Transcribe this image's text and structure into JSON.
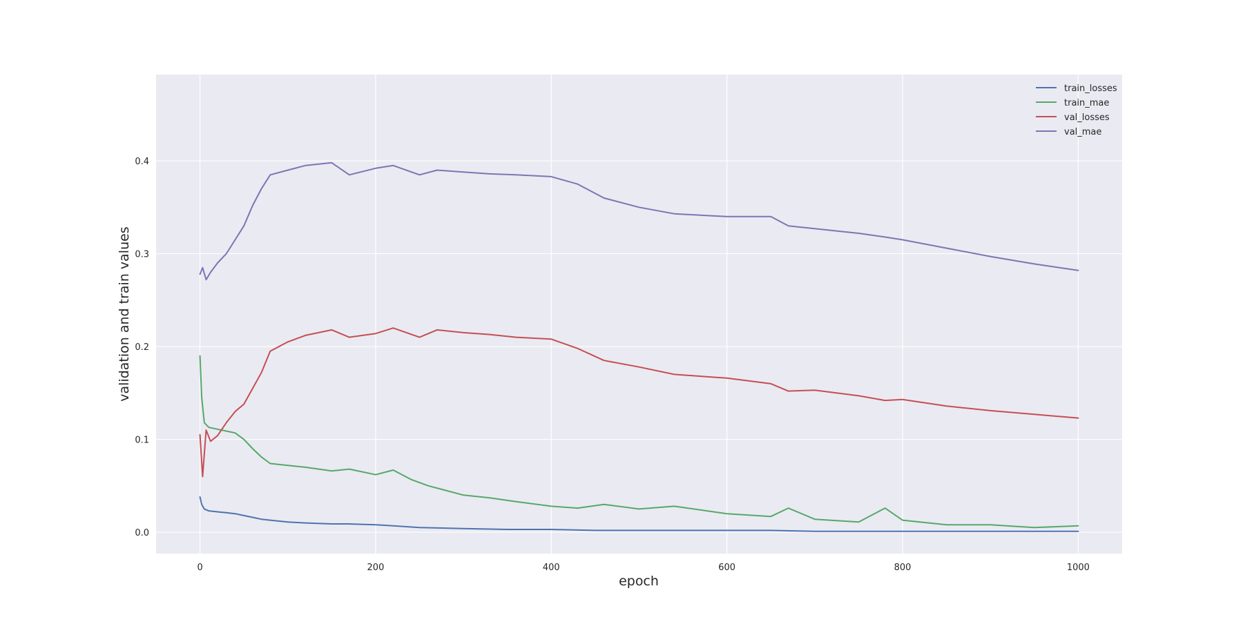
{
  "chart_data": {
    "type": "line",
    "title": "",
    "xlabel": "epoch",
    "ylabel": "validation and train values",
    "xlim": [
      -50,
      1050
    ],
    "ylim": [
      -0.023,
      0.493
    ],
    "xticks": [
      0,
      200,
      400,
      600,
      800,
      1000
    ],
    "yticks": [
      0.0,
      0.1,
      0.2,
      0.3,
      0.4
    ],
    "xtick_labels": [
      "0",
      "200",
      "400",
      "600",
      "800",
      "1000"
    ],
    "ytick_labels": [
      "0.0",
      "0.1",
      "0.2",
      "0.3",
      "0.4"
    ],
    "grid": true,
    "legend_position": "top-right",
    "background_color": "#EAEAF2",
    "grid_color": "#FFFFFF",
    "series": [
      {
        "name": "train_losses",
        "color": "#4C72B0",
        "x": [
          0,
          2,
          5,
          10,
          20,
          30,
          40,
          50,
          60,
          70,
          80,
          100,
          120,
          150,
          170,
          200,
          220,
          250,
          300,
          350,
          400,
          450,
          500,
          550,
          600,
          650,
          700,
          750,
          800,
          850,
          900,
          950,
          1000
        ],
        "values": [
          0.038,
          0.03,
          0.025,
          0.023,
          0.022,
          0.021,
          0.02,
          0.018,
          0.016,
          0.014,
          0.013,
          0.011,
          0.01,
          0.009,
          0.009,
          0.008,
          0.007,
          0.005,
          0.004,
          0.003,
          0.003,
          0.002,
          0.002,
          0.002,
          0.002,
          0.002,
          0.001,
          0.001,
          0.001,
          0.001,
          0.001,
          0.001,
          0.001
        ]
      },
      {
        "name": "train_mae",
        "color": "#55A868",
        "x": [
          0,
          2,
          5,
          10,
          20,
          30,
          40,
          50,
          60,
          70,
          80,
          100,
          120,
          150,
          170,
          200,
          220,
          240,
          260,
          280,
          300,
          330,
          360,
          400,
          430,
          460,
          500,
          540,
          600,
          650,
          670,
          700,
          750,
          780,
          800,
          850,
          900,
          950,
          1000
        ],
        "values": [
          0.19,
          0.145,
          0.118,
          0.113,
          0.111,
          0.109,
          0.107,
          0.1,
          0.09,
          0.081,
          0.074,
          0.072,
          0.07,
          0.066,
          0.068,
          0.062,
          0.067,
          0.057,
          0.05,
          0.045,
          0.04,
          0.037,
          0.033,
          0.028,
          0.026,
          0.03,
          0.025,
          0.028,
          0.02,
          0.017,
          0.026,
          0.014,
          0.011,
          0.026,
          0.013,
          0.008,
          0.008,
          0.005,
          0.007
        ]
      },
      {
        "name": "val_losses",
        "color": "#C44E52",
        "x": [
          0,
          3,
          7,
          12,
          20,
          30,
          40,
          50,
          60,
          70,
          80,
          100,
          120,
          150,
          170,
          200,
          220,
          250,
          270,
          300,
          330,
          360,
          400,
          430,
          460,
          500,
          540,
          600,
          650,
          670,
          700,
          750,
          780,
          800,
          850,
          900,
          950,
          1000
        ],
        "values": [
          0.105,
          0.06,
          0.11,
          0.098,
          0.104,
          0.118,
          0.13,
          0.138,
          0.155,
          0.172,
          0.195,
          0.205,
          0.212,
          0.218,
          0.21,
          0.214,
          0.22,
          0.21,
          0.218,
          0.215,
          0.213,
          0.21,
          0.208,
          0.198,
          0.185,
          0.178,
          0.17,
          0.166,
          0.16,
          0.152,
          0.153,
          0.147,
          0.142,
          0.143,
          0.136,
          0.131,
          0.127,
          0.123
        ]
      },
      {
        "name": "val_mae",
        "color": "#8172B2",
        "x": [
          0,
          3,
          7,
          12,
          20,
          30,
          40,
          50,
          60,
          70,
          80,
          100,
          120,
          150,
          170,
          200,
          220,
          250,
          270,
          300,
          330,
          360,
          400,
          430,
          460,
          500,
          540,
          600,
          650,
          670,
          700,
          750,
          780,
          800,
          850,
          900,
          950,
          1000
        ],
        "values": [
          0.278,
          0.285,
          0.272,
          0.28,
          0.29,
          0.3,
          0.315,
          0.33,
          0.352,
          0.37,
          0.385,
          0.39,
          0.395,
          0.398,
          0.385,
          0.392,
          0.395,
          0.385,
          0.39,
          0.388,
          0.386,
          0.385,
          0.383,
          0.375,
          0.36,
          0.35,
          0.343,
          0.34,
          0.34,
          0.33,
          0.327,
          0.322,
          0.318,
          0.315,
          0.306,
          0.297,
          0.289,
          0.282
        ]
      }
    ]
  }
}
